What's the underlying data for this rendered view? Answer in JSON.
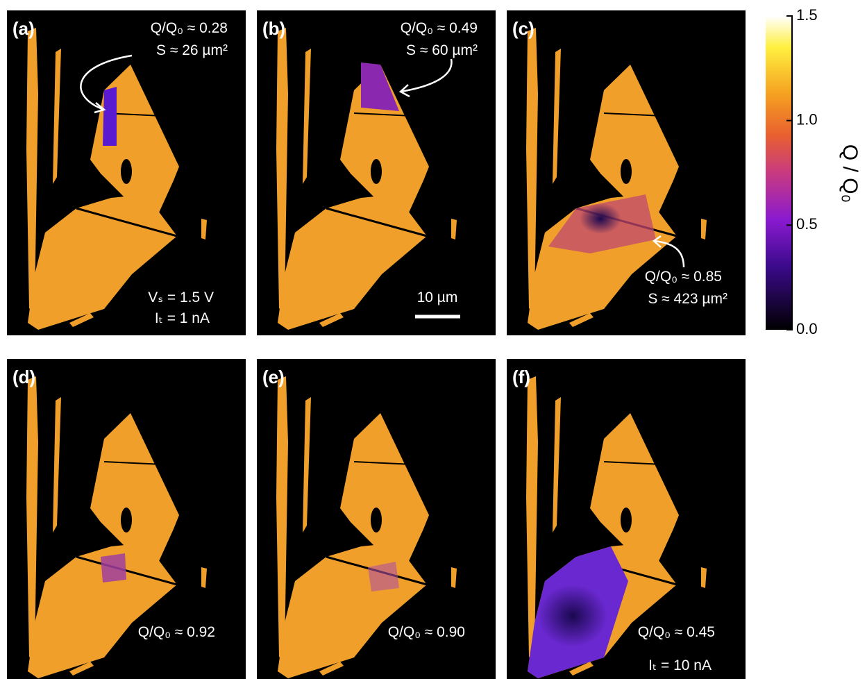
{
  "panels": [
    {
      "label": "(a)",
      "lines": [
        "Q/Q₀ ≈ 0.28",
        "S ≈ 26 µm²",
        "Vₛ = 1.5 V",
        "Iₜ = 1 nA"
      ]
    },
    {
      "label": "(b)",
      "lines": [
        "Q/Q₀ ≈ 0.49",
        "S ≈ 60 µm²",
        "10 µm"
      ]
    },
    {
      "label": "(c)",
      "lines": [
        "Q/Q₀ ≈ 0.85",
        "S ≈ 423 µm²"
      ]
    },
    {
      "label": "(d)",
      "lines": [
        "Q/Q₀ ≈ 0.92"
      ]
    },
    {
      "label": "(e)",
      "lines": [
        "Q/Q₀ ≈ 0.90"
      ]
    },
    {
      "label": "(f)",
      "lines": [
        "Q/Q₀ ≈ 0.45",
        "Iₜ = 10 nA"
      ]
    }
  ],
  "colorbar": {
    "label": "Q / Q₀",
    "ylim": [
      0,
      1.5
    ],
    "yticks": [
      {
        "value": 0,
        "label": "0.0"
      },
      {
        "value": 0.5,
        "label": "0.5"
      },
      {
        "value": 1,
        "label": "1.0"
      },
      {
        "value": 1.5,
        "label": "1.5"
      }
    ]
  }
}
